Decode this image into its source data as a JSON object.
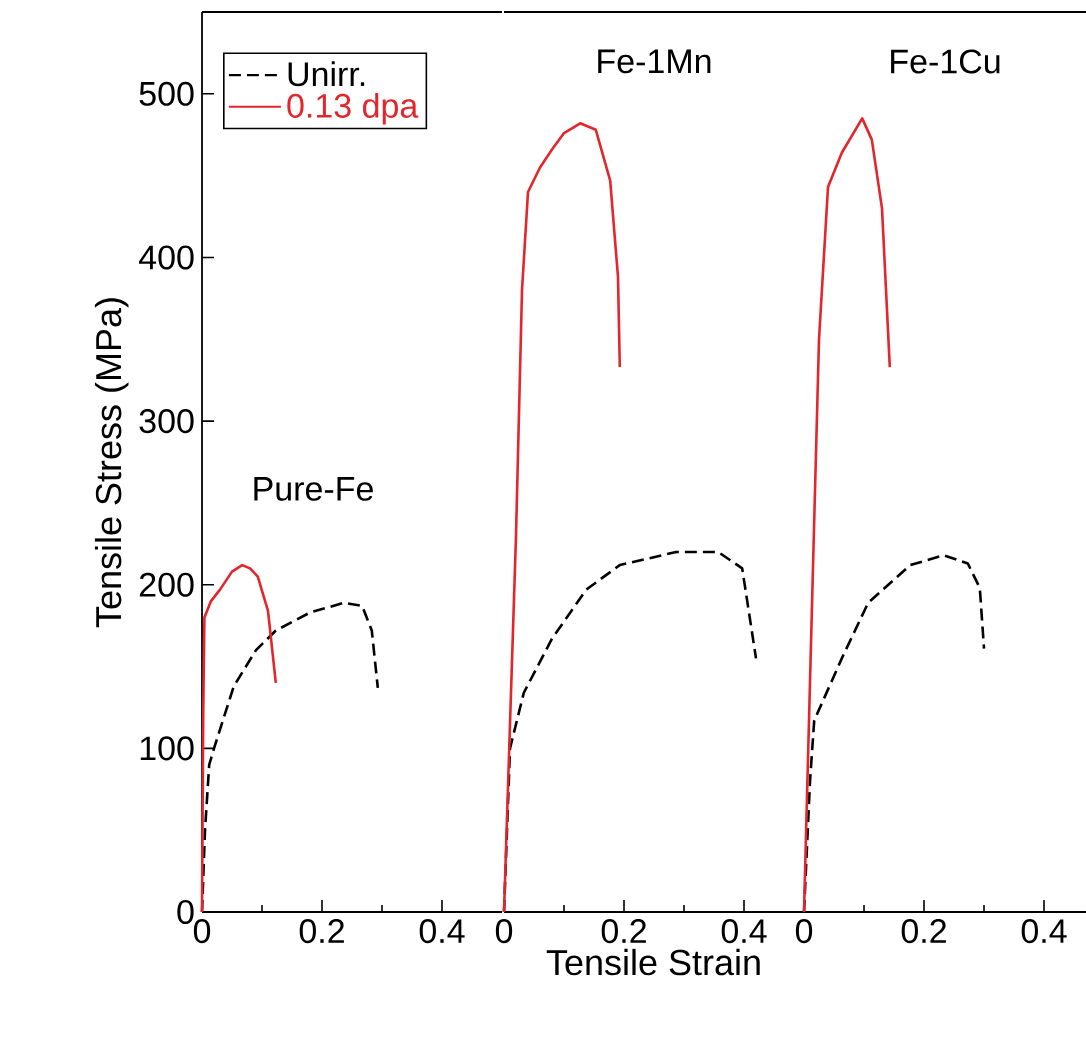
{
  "chart_data": [
    {
      "type": "line",
      "ylabel": "Tensile Stress (MPa)",
      "annotations": [
        "Pure-Fe"
      ],
      "xlim": [
        0,
        0.5
      ],
      "xticks": [
        0,
        0.2,
        0.4
      ],
      "ylim": [
        0,
        550
      ],
      "yticks": [
        0,
        100,
        200,
        300,
        400,
        500
      ],
      "grid": false,
      "legend": "top left",
      "series": [
        {
          "name": "Unirr.",
          "color": "#000000",
          "line_style": "dashed",
          "x": [
            0,
            0.005,
            0.012,
            0.02,
            0.053,
            0.09,
            0.123,
            0.18,
            0.237,
            0.267,
            0.283,
            0.293
          ],
          "values": [
            0,
            50,
            90,
            100,
            138,
            160,
            172,
            183,
            189,
            187,
            172,
            137
          ]
        },
        {
          "name": "0.13 dpa",
          "color": "#e3262b",
          "line_style": "solid",
          "x": [
            0,
            0.002,
            0.004,
            0.015,
            0.03,
            0.05,
            0.067,
            0.08,
            0.093,
            0.11,
            0.123
          ],
          "values": [
            0,
            120,
            180,
            190,
            197,
            208,
            212,
            210,
            205,
            184,
            140
          ]
        }
      ]
    },
    {
      "type": "line",
      "xlabel": "Tensile Strain",
      "annotations": [
        "Fe-1Mn"
      ],
      "xlim": [
        0,
        0.5
      ],
      "xticks": [
        0,
        0.2,
        0.4
      ],
      "ylim": [
        0,
        550
      ],
      "tick_labels": "x",
      "grid": false,
      "series": [
        {
          "color": "#000000",
          "line_style": "dashed",
          "x": [
            0,
            0.005,
            0.01,
            0.033,
            0.08,
            0.137,
            0.193,
            0.287,
            0.357,
            0.397,
            0.42
          ],
          "values": [
            0,
            null,
            100,
            134,
            167,
            197,
            212,
            220,
            220,
            210,
            155
          ]
        },
        {
          "color": "#e3262b",
          "line_style": "solid",
          "x": [
            0,
            0.02,
            0.03,
            0.04,
            0.06,
            0.08,
            0.1,
            0.127,
            0.153,
            0.177,
            0.19,
            0.193
          ],
          "values": [
            0,
            230,
            380,
            440,
            455,
            466,
            476,
            482,
            478,
            447,
            388,
            333
          ]
        }
      ]
    },
    {
      "type": "line",
      "annotations": [
        "Fe-1Cu"
      ],
      "xlim": [
        0,
        0.47
      ],
      "xticks": [
        0,
        0.2,
        0.4
      ],
      "ylim": [
        0,
        550
      ],
      "tick_labels": "x",
      "grid": false,
      "series": [
        {
          "color": "#000000",
          "line_style": "dashed",
          "x": [
            0,
            0.01,
            0.017,
            0.063,
            0.107,
            0.177,
            0.233,
            0.273,
            0.293,
            0.3
          ],
          "values": [
            0,
            80,
            117,
            155,
            189,
            212,
            218,
            213,
            198,
            161
          ]
        },
        {
          "color": "#e3262b",
          "line_style": "solid",
          "x": [
            0,
            0.017,
            0.025,
            0.04,
            0.063,
            0.097,
            0.113,
            0.13,
            0.143
          ],
          "values": [
            0,
            239,
            350,
            443,
            464,
            485,
            472,
            430,
            333
          ]
        }
      ]
    }
  ]
}
